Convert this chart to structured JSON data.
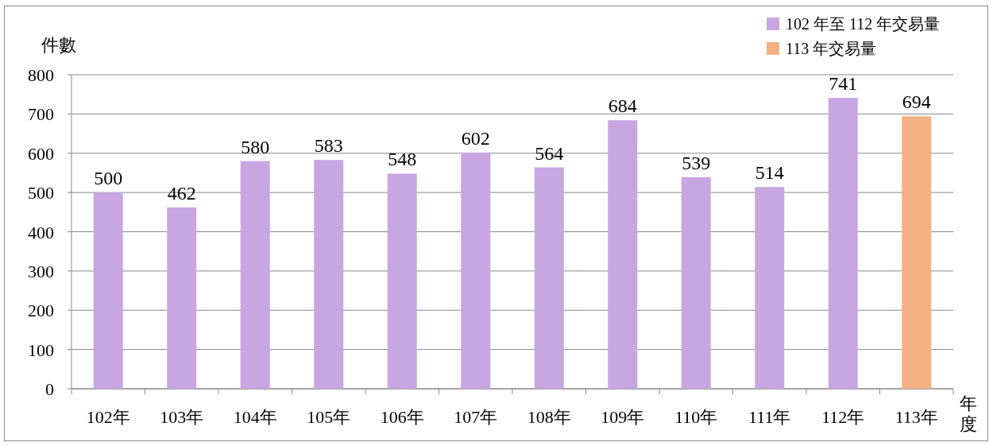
{
  "chart_data": {
    "type": "bar",
    "ylabel": "件數",
    "xlabel": "年度",
    "categories": [
      "102年",
      "103年",
      "104年",
      "105年",
      "106年",
      "107年",
      "108年",
      "109年",
      "110年",
      "111年",
      "112年",
      "113年"
    ],
    "series": [
      {
        "name": "102 年至 112 年交易量",
        "color": "#c8a6e2",
        "values": [
          500,
          462,
          580,
          583,
          548,
          602,
          564,
          684,
          539,
          514,
          741,
          null
        ]
      },
      {
        "name": "113 年交易量",
        "color": "#f4b183",
        "values": [
          null,
          null,
          null,
          null,
          null,
          null,
          null,
          null,
          null,
          null,
          null,
          694
        ]
      }
    ],
    "ylim": [
      0,
      800
    ],
    "yticks": [
      0,
      100,
      200,
      300,
      400,
      500,
      600,
      700,
      800
    ],
    "grid": "y",
    "legend": "top right",
    "data_labels": true
  }
}
